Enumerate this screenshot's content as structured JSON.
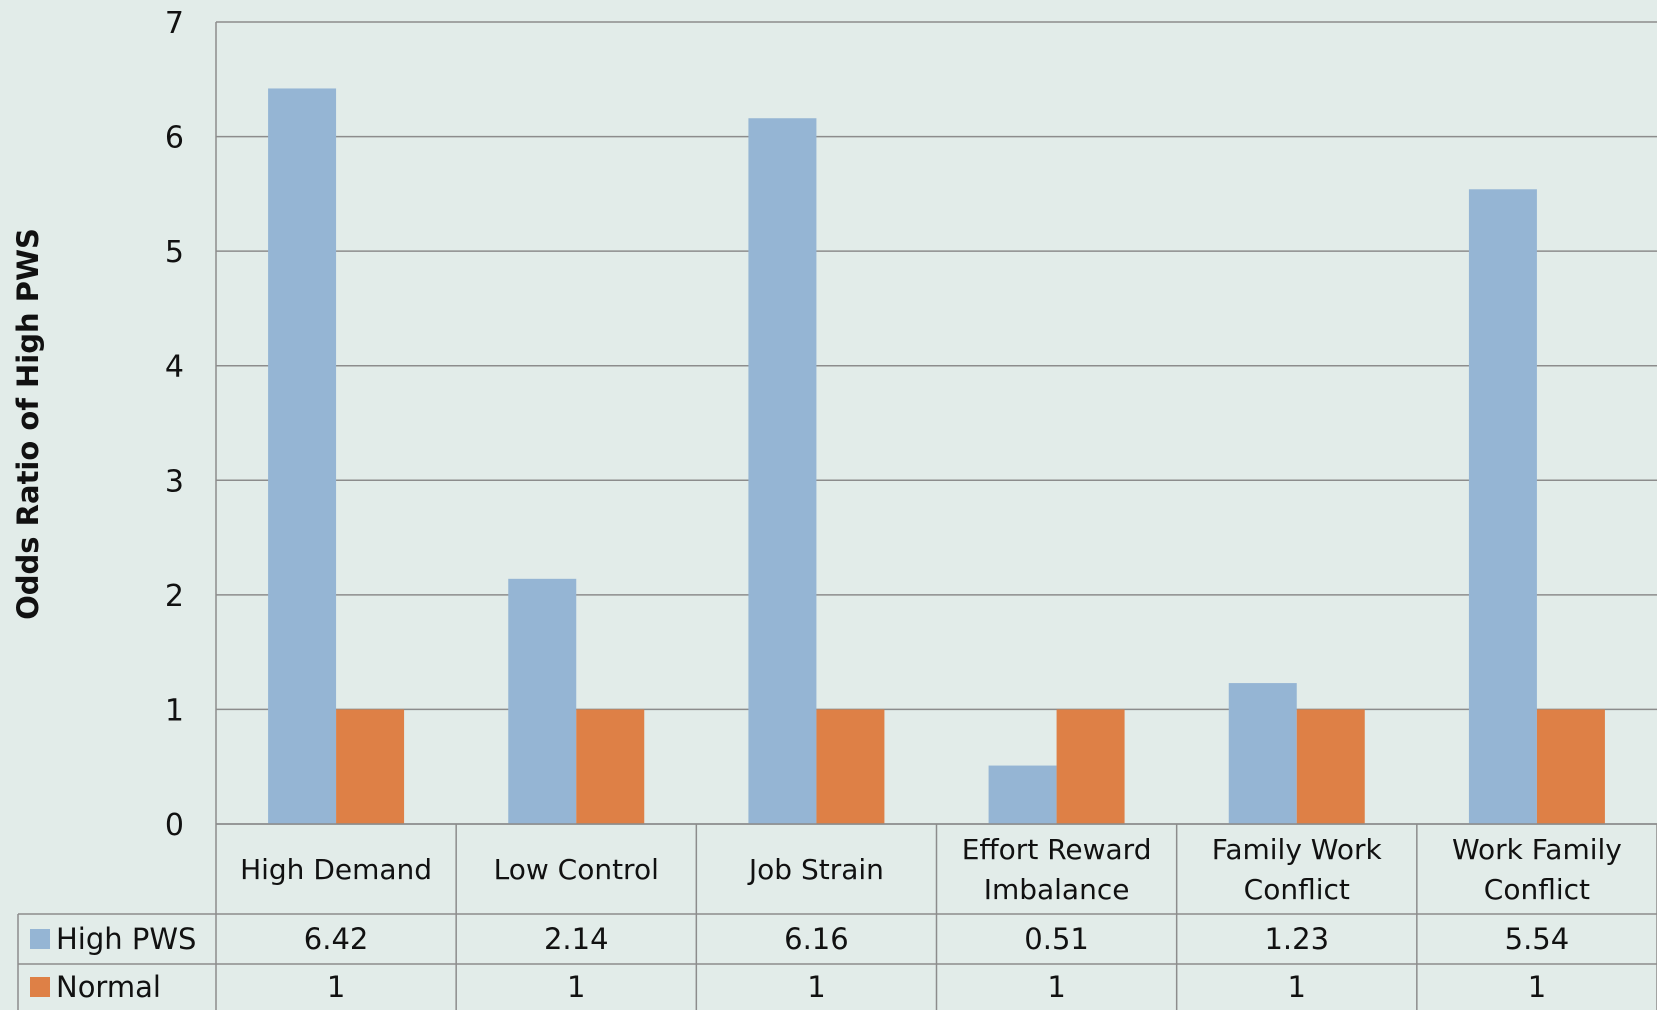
{
  "chart_data": {
    "type": "bar",
    "title": "",
    "xlabel": "",
    "ylabel": "Odds Ratio of High PWS",
    "ylim": [
      0,
      7
    ],
    "yticks": [
      0,
      1,
      2,
      3,
      4,
      5,
      6,
      7
    ],
    "grid": true,
    "legend": "data-table",
    "categories": [
      [
        "High Demand"
      ],
      [
        "Low Control"
      ],
      [
        "Job Strain"
      ],
      [
        "Effort Reward",
        "Imbalance"
      ],
      [
        "Family Work",
        "Conflict"
      ],
      [
        "Work Family",
        "Conflict"
      ]
    ],
    "series": [
      {
        "name": "High PWS",
        "color": "#95B5D4",
        "values": [
          6.42,
          2.14,
          6.16,
          0.51,
          1.23,
          5.54
        ],
        "labels": [
          "6.42",
          "2.14",
          "6.16",
          "0.51",
          "1.23",
          "5.54"
        ]
      },
      {
        "name": "Normal",
        "color": "#DE8046",
        "values": [
          1,
          1,
          1,
          1,
          1,
          1
        ],
        "labels": [
          "1",
          "1",
          "1",
          "1",
          "1",
          "1"
        ]
      }
    ]
  }
}
